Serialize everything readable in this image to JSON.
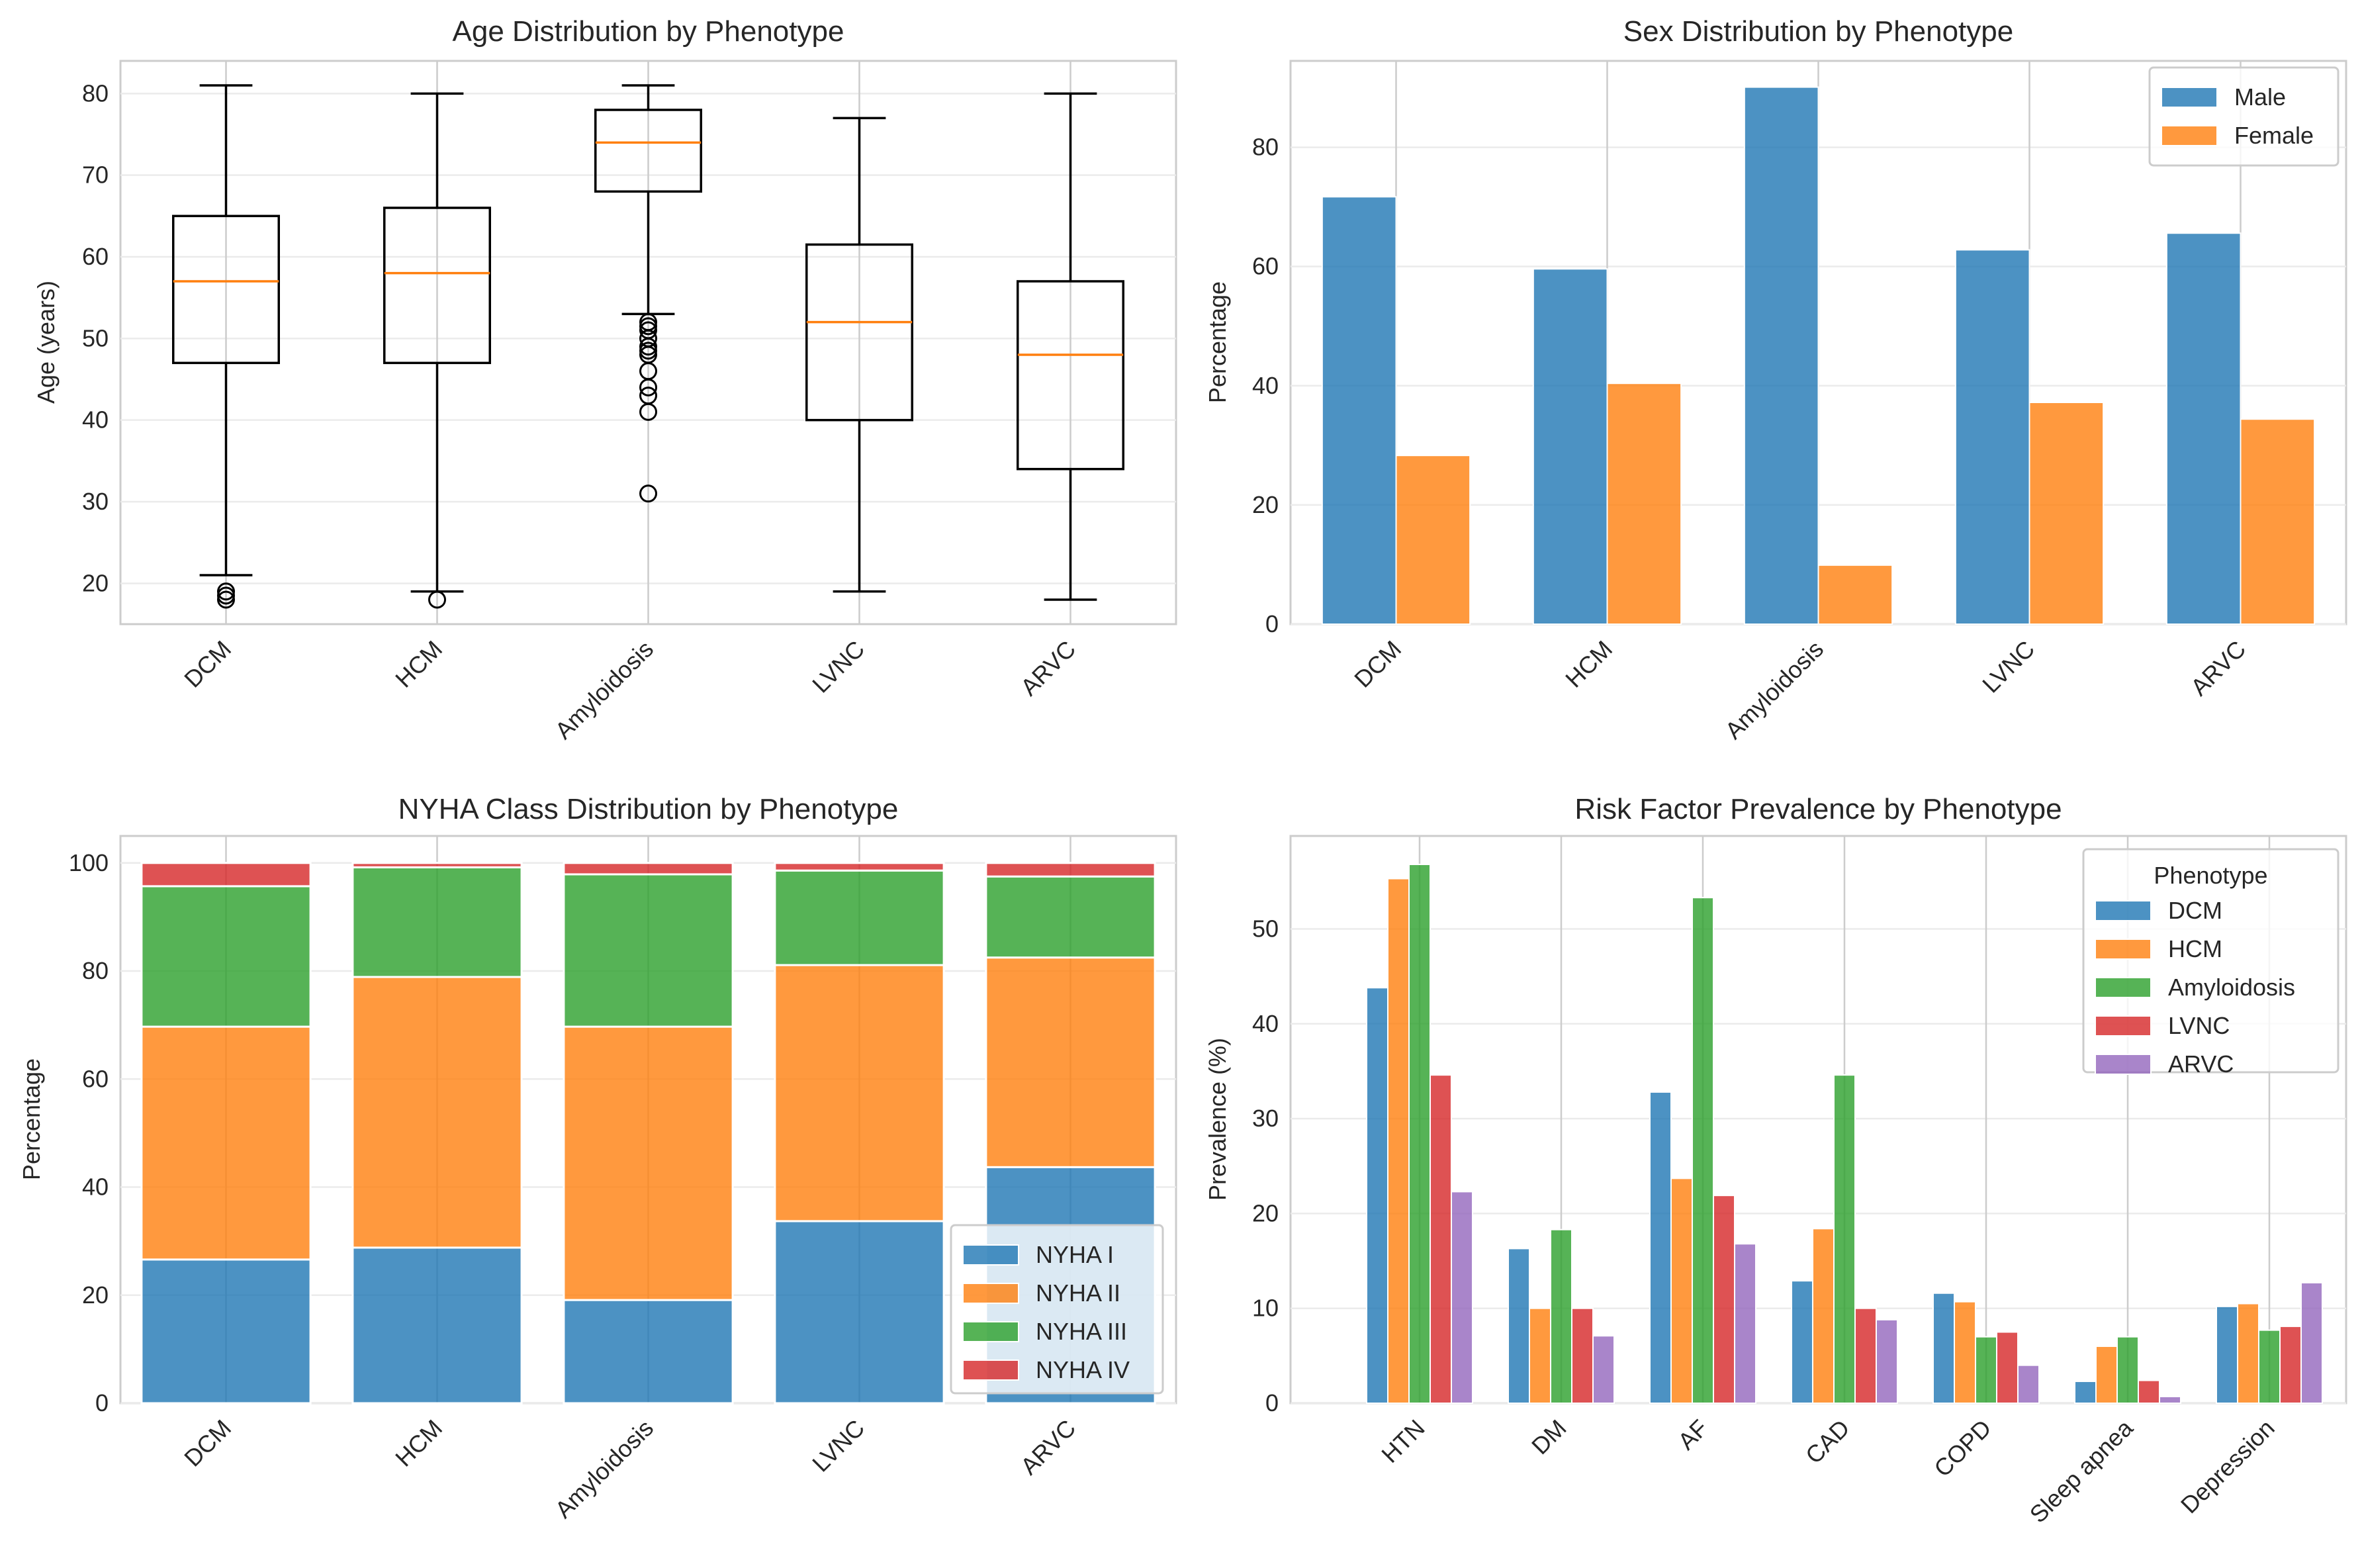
{
  "categories": [
    "DCM",
    "HCM",
    "Amyloidosis",
    "LVNC",
    "ARVC"
  ],
  "colors": {
    "blue": "#1f77b4",
    "orange": "#ff7f0e",
    "green": "#2ca02c",
    "red": "#d62728",
    "purple": "#9467bd",
    "median": "#ff7f0e",
    "box": "#000000"
  },
  "chart_data": [
    {
      "id": "age",
      "type": "box",
      "title": "Age Distribution by Phenotype",
      "xlabel": "",
      "ylabel": "Age (years)",
      "ylim": [
        15,
        84
      ],
      "yticks": [
        20,
        30,
        40,
        50,
        60,
        70,
        80
      ],
      "grid": true,
      "categories": [
        "DCM",
        "HCM",
        "Amyloidosis",
        "LVNC",
        "ARVC"
      ],
      "boxes": [
        {
          "name": "DCM",
          "whislo": 21,
          "q1": 47,
          "med": 57,
          "q3": 65,
          "whishi": 81,
          "fliers": [
            19,
            18.5,
            18
          ]
        },
        {
          "name": "HCM",
          "whislo": 19,
          "q1": 47,
          "med": 58,
          "q3": 66,
          "whishi": 80,
          "fliers": [
            18
          ]
        },
        {
          "name": "Amyloidosis",
          "whislo": 53,
          "q1": 68,
          "med": 74,
          "q3": 78,
          "whishi": 81,
          "fliers": [
            52,
            51.5,
            51,
            50,
            49,
            48.5,
            48,
            46,
            44,
            43,
            41,
            31
          ]
        },
        {
          "name": "LVNC",
          "whislo": 19,
          "q1": 40,
          "med": 52,
          "q3": 61.5,
          "whishi": 77,
          "fliers": []
        },
        {
          "name": "ARVC",
          "whislo": 18,
          "q1": 34,
          "med": 48,
          "q3": 57,
          "whishi": 80,
          "fliers": []
        }
      ]
    },
    {
      "id": "sex",
      "type": "bar",
      "title": "Sex Distribution by Phenotype",
      "xlabel": "",
      "ylabel": "Percentage",
      "ylim": [
        0,
        94.5
      ],
      "yticks": [
        0,
        20,
        40,
        60,
        80
      ],
      "grid": true,
      "legend": "top-right",
      "categories": [
        "DCM",
        "HCM",
        "Amyloidosis",
        "LVNC",
        "ARVC"
      ],
      "series": [
        {
          "name": "Male",
          "color": "#1f77b4",
          "values": [
            71.7,
            59.6,
            90.1,
            62.8,
            65.6
          ]
        },
        {
          "name": "Female",
          "color": "#ff7f0e",
          "values": [
            28.3,
            40.4,
            9.9,
            37.2,
            34.4
          ]
        }
      ]
    },
    {
      "id": "nyha",
      "type": "stacked-bar",
      "title": "NYHA Class Distribution by Phenotype",
      "xlabel": "",
      "ylabel": "Percentage",
      "ylim": [
        0,
        105
      ],
      "yticks": [
        0,
        20,
        40,
        60,
        80,
        100
      ],
      "grid": true,
      "legend": "lower-right",
      "categories": [
        "DCM",
        "HCM",
        "Amyloidosis",
        "LVNC",
        "ARVC"
      ],
      "series": [
        {
          "name": "NYHA I",
          "color": "#1f77b4",
          "values": [
            26.6,
            28.8,
            19.1,
            33.7,
            43.7
          ]
        },
        {
          "name": "NYHA II",
          "color": "#ff7f0e",
          "values": [
            43.1,
            50.1,
            50.6,
            47.4,
            38.8
          ]
        },
        {
          "name": "NYHA III",
          "color": "#2ca02c",
          "values": [
            26.0,
            20.3,
            28.2,
            17.5,
            15.0
          ]
        },
        {
          "name": "NYHA IV",
          "color": "#d62728",
          "values": [
            4.3,
            0.8,
            2.1,
            1.4,
            2.5
          ]
        }
      ]
    },
    {
      "id": "risk",
      "type": "bar",
      "title": "Risk Factor Prevalence by Phenotype",
      "xlabel": "",
      "ylabel": "Prevalence (%)",
      "ylim": [
        0,
        59.8
      ],
      "yticks": [
        0,
        10,
        20,
        30,
        40,
        50
      ],
      "grid": true,
      "legend": "top-right",
      "legend_title": "Phenotype",
      "categories": [
        "HTN",
        "DM",
        "AF",
        "CAD",
        "COPD",
        "Sleep apnea",
        "Depression"
      ],
      "series": [
        {
          "name": "DCM",
          "color": "#1f77b4",
          "values": [
            43.8,
            16.3,
            32.8,
            12.9,
            11.6,
            2.3,
            10.2
          ]
        },
        {
          "name": "HCM",
          "color": "#ff7f0e",
          "values": [
            55.3,
            10.0,
            23.7,
            18.4,
            10.7,
            6.0,
            10.5
          ]
        },
        {
          "name": "Amyloidosis",
          "color": "#2ca02c",
          "values": [
            56.8,
            18.3,
            53.3,
            34.6,
            7.0,
            7.0,
            7.7
          ]
        },
        {
          "name": "LVNC",
          "color": "#d62728",
          "values": [
            34.6,
            10.0,
            21.9,
            10.0,
            7.5,
            2.4,
            8.1
          ]
        },
        {
          "name": "ARVC",
          "color": "#9467bd",
          "values": [
            22.3,
            7.1,
            16.8,
            8.8,
            4.0,
            0.7,
            12.7
          ]
        }
      ]
    }
  ]
}
